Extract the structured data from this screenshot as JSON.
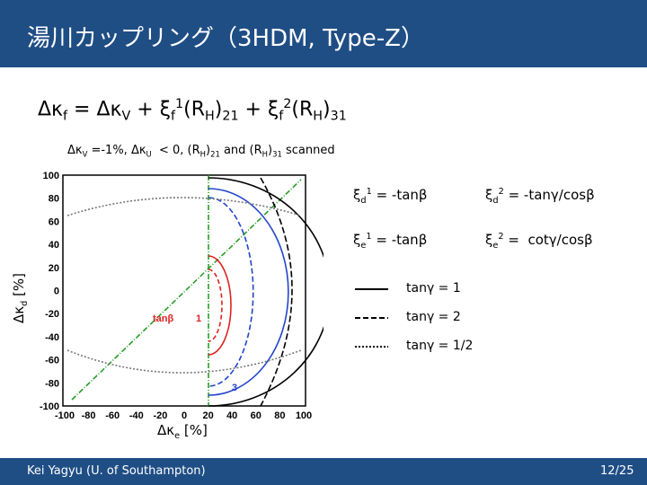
{
  "header": {
    "title": "湯川カップリング（3HDM, Type-Z）"
  },
  "formula": [
    "Δκ",
    {
      "sub": "f"
    },
    " = Δκ",
    {
      "sub": "V"
    },
    " + ξ",
    {
      "sub": "f"
    },
    {
      "sup": "1"
    },
    "(R",
    {
      "sub": "H"
    },
    ")",
    {
      "sub": "21"
    },
    " + ξ",
    {
      "sub": "f"
    },
    {
      "sup": "2"
    },
    "(R",
    {
      "sub": "H"
    },
    ")",
    {
      "sub": "31"
    }
  ],
  "scan_note": [
    "Δκ",
    {
      "sub": "V"
    },
    " =-1%, Δκ",
    {
      "sub": "U"
    },
    "  < 0, (R",
    {
      "sub": "H"
    },
    ")",
    {
      "sub": "21"
    },
    " and (R",
    {
      "sub": "H"
    },
    ")",
    {
      "sub": "31"
    },
    " scanned"
  ],
  "couplings": [
    [
      "ξ",
      {
        "sub": "d"
      },
      {
        "sup": "1"
      },
      " = -tanβ"
    ],
    [
      "ξ",
      {
        "sub": "d"
      },
      {
        "sup": "2"
      },
      " = -tanγ/cosβ"
    ],
    [
      "ξ",
      {
        "sub": "e"
      },
      {
        "sup": "1"
      },
      " = -tanβ"
    ],
    [
      "ξ",
      {
        "sub": "e"
      },
      {
        "sup": "2"
      },
      " =  cotγ/cosβ"
    ]
  ],
  "legend": [
    "tanγ = 1",
    "tanγ = 2",
    "tanγ = 1/2"
  ],
  "plot": {
    "yticks": [
      "100",
      "80",
      "60",
      "40",
      "20",
      "0",
      "-20",
      "-40",
      "-60",
      "-80",
      "-100"
    ],
    "xticks": [
      "-100",
      "-80",
      "-60",
      "-40",
      "-20",
      "0",
      "20",
      "40",
      "60",
      "80",
      "100"
    ],
    "ylabel": [
      "Δκ",
      {
        "sub": "d"
      },
      " [%]"
    ],
    "xlabel": [
      "Δκ",
      {
        "sub": "e"
      },
      " [%]"
    ],
    "annotations": [
      "tanβ",
      "1",
      "3"
    ]
  },
  "footer": {
    "author": "Kei Yagyu (U. of Southampton)",
    "page": "12/25"
  }
}
